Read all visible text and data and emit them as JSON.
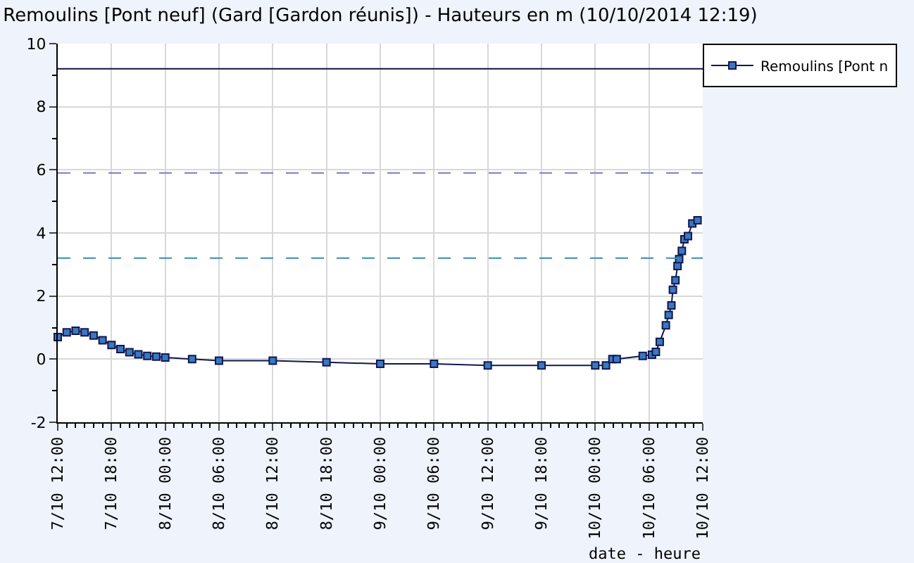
{
  "chart_data": {
    "type": "line",
    "title": "Remoulins [Pont neuf] (Gard [Gardon réunis]) - Hauteurs en m (10/10/2014 12:19)",
    "xlabel": "date - heure",
    "x": [
      "2014-10-07T12:00",
      "2014-10-07T13:00",
      "2014-10-07T14:00",
      "2014-10-07T15:00",
      "2014-10-07T16:00",
      "2014-10-07T17:00",
      "2014-10-07T18:00",
      "2014-10-07T19:00",
      "2014-10-07T20:00",
      "2014-10-07T21:00",
      "2014-10-07T22:00",
      "2014-10-07T23:00",
      "2014-10-08T00:00",
      "2014-10-08T03:00",
      "2014-10-08T06:00",
      "2014-10-08T12:00",
      "2014-10-08T18:00",
      "2014-10-09T00:00",
      "2014-10-09T06:00",
      "2014-10-09T12:00",
      "2014-10-09T18:00",
      "2014-10-10T00:00",
      "2014-10-10T01:12",
      "2014-10-10T01:55",
      "2014-10-10T02:24",
      "2014-10-10T05:18",
      "2014-10-10T06:20",
      "2014-10-10T06:46",
      "2014-10-10T07:12",
      "2014-10-10T07:53",
      "2014-10-10T08:12",
      "2014-10-10T08:30",
      "2014-10-10T08:40",
      "2014-10-10T08:57",
      "2014-10-10T09:11",
      "2014-10-10T09:22",
      "2014-10-10T09:40",
      "2014-10-10T09:57",
      "2014-10-10T10:21",
      "2014-10-10T10:50",
      "2014-10-10T11:25"
    ],
    "series": [
      {
        "name": "Remoulins [Pont n",
        "color": "#3a78c0",
        "values": [
          0.7,
          0.85,
          0.9,
          0.85,
          0.75,
          0.6,
          0.45,
          0.32,
          0.22,
          0.15,
          0.1,
          0.08,
          0.05,
          0.0,
          -0.05,
          -0.05,
          -0.1,
          -0.15,
          -0.15,
          -0.2,
          -0.2,
          -0.2,
          -0.2,
          0.0,
          0.0,
          0.1,
          0.14,
          0.23,
          0.55,
          1.07,
          1.4,
          1.7,
          2.2,
          2.5,
          2.95,
          3.17,
          3.43,
          3.8,
          3.9,
          4.3,
          4.4
        ]
      }
    ],
    "xlim": [
      "2014-10-07T12:00",
      "2014-10-10T12:00"
    ],
    "xticks": [
      {
        "value": "2014-10-07T12:00",
        "label": "7/10 12:00"
      },
      {
        "value": "2014-10-07T18:00",
        "label": "7/10 18:00"
      },
      {
        "value": "2014-10-08T00:00",
        "label": "8/10 00:00"
      },
      {
        "value": "2014-10-08T06:00",
        "label": "8/10 06:00"
      },
      {
        "value": "2014-10-08T12:00",
        "label": "8/10 12:00"
      },
      {
        "value": "2014-10-08T18:00",
        "label": "8/10 18:00"
      },
      {
        "value": "2014-10-09T00:00",
        "label": "9/10 00:00"
      },
      {
        "value": "2014-10-09T06:00",
        "label": "9/10 06:00"
      },
      {
        "value": "2014-10-09T12:00",
        "label": "9/10 12:00"
      },
      {
        "value": "2014-10-09T18:00",
        "label": "9/10 18:00"
      },
      {
        "value": "2014-10-10T00:00",
        "label": "10/10 00:00"
      },
      {
        "value": "2014-10-10T06:00",
        "label": "10/10 06:00"
      },
      {
        "value": "2014-10-10T12:00",
        "label": "10/10 12:00"
      }
    ],
    "ylim": [
      -2,
      10
    ],
    "yticks": [
      -2,
      0,
      2,
      4,
      6,
      8,
      10
    ],
    "ref_lines": [
      {
        "axis": "y",
        "value": 9.2,
        "color": "#101040",
        "line_style": "solid"
      },
      {
        "axis": "y",
        "value": 5.9,
        "color": "#7a7ac0",
        "line_style": "dashed"
      },
      {
        "axis": "y",
        "value": 3.2,
        "color": "#3a8ab0",
        "line_style": "dashed"
      }
    ],
    "grid": true,
    "legend": "top right",
    "marker": "square",
    "line_style": "solid"
  }
}
